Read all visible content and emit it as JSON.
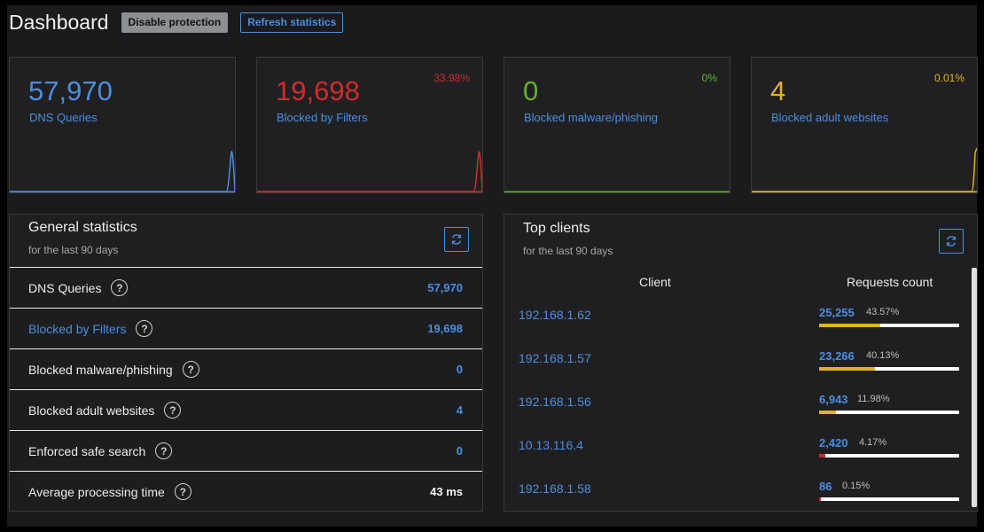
{
  "header": {
    "title": "Dashboard",
    "disable_label": "Disable protection",
    "refresh_label": "Refresh statistics"
  },
  "cards": [
    {
      "value": "57,970",
      "label": "DNS Queries",
      "percent": "",
      "color": "#4a8fe0"
    },
    {
      "value": "19,698",
      "label": "Blocked by Filters",
      "percent": "33.98%",
      "color": "#d12b2b"
    },
    {
      "value": "0",
      "label": "Blocked malware/phishing",
      "percent": "0%",
      "color": "#5fb32a"
    },
    {
      "value": "4",
      "label": "Blocked adult websites",
      "percent": "0.01%",
      "color": "#e0b323"
    }
  ],
  "general": {
    "title": "General statistics",
    "subtitle": "for the last 90 days",
    "rows": [
      {
        "label": "DNS Queries",
        "value": "57,970"
      },
      {
        "label": "Blocked by Filters",
        "value": "19,698"
      },
      {
        "label": "Blocked malware/phishing",
        "value": "0"
      },
      {
        "label": "Blocked adult websites",
        "value": "4"
      },
      {
        "label": "Enforced safe search",
        "value": "0"
      },
      {
        "label": "Average processing time",
        "value": "43 ms"
      }
    ]
  },
  "clients": {
    "title": "Top clients",
    "subtitle": "for the last 90 days",
    "col_client": "Client",
    "col_requests": "Requests count",
    "rows": [
      {
        "ip": "192.168.1.62",
        "count": "25,255",
        "percent": "43.57%",
        "fraction": 0.4357,
        "bar_color": "#e0b323"
      },
      {
        "ip": "192.168.1.57",
        "count": "23,266",
        "percent": "40.13%",
        "fraction": 0.4013,
        "bar_color": "#e0b323"
      },
      {
        "ip": "192.168.1.56",
        "count": "6,943",
        "percent": "11.98%",
        "fraction": 0.1198,
        "bar_color": "#e0b323"
      },
      {
        "ip": "10.13.116.4",
        "count": "2,420",
        "percent": "4.17%",
        "fraction": 0.0417,
        "bar_color": "#d12b2b"
      },
      {
        "ip": "192.168.1.58",
        "count": "86",
        "percent": "0.15%",
        "fraction": 0.0015,
        "bar_color": "#d12b2b"
      }
    ]
  },
  "icons": {
    "help": "?",
    "refresh": "refresh-icon"
  }
}
